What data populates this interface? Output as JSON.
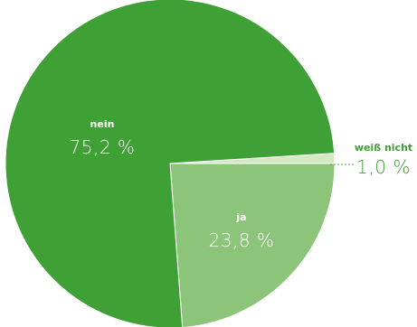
{
  "chart_data": {
    "type": "pie",
    "slices": [
      {
        "label": "nein",
        "value": 75.2,
        "display": "75,2 %",
        "color": "#3fa035",
        "text_color": "#ffffff"
      },
      {
        "label": "ja",
        "value": 23.8,
        "display": "23,8 %",
        "color": "#8cc47a",
        "text_color": "#ffffff"
      },
      {
        "label": "weiß nicht",
        "value": 1.0,
        "display": "1,0 %",
        "color": "#d3e9c4",
        "text_color": "#3fa035"
      }
    ],
    "title": "",
    "legend": "none"
  }
}
